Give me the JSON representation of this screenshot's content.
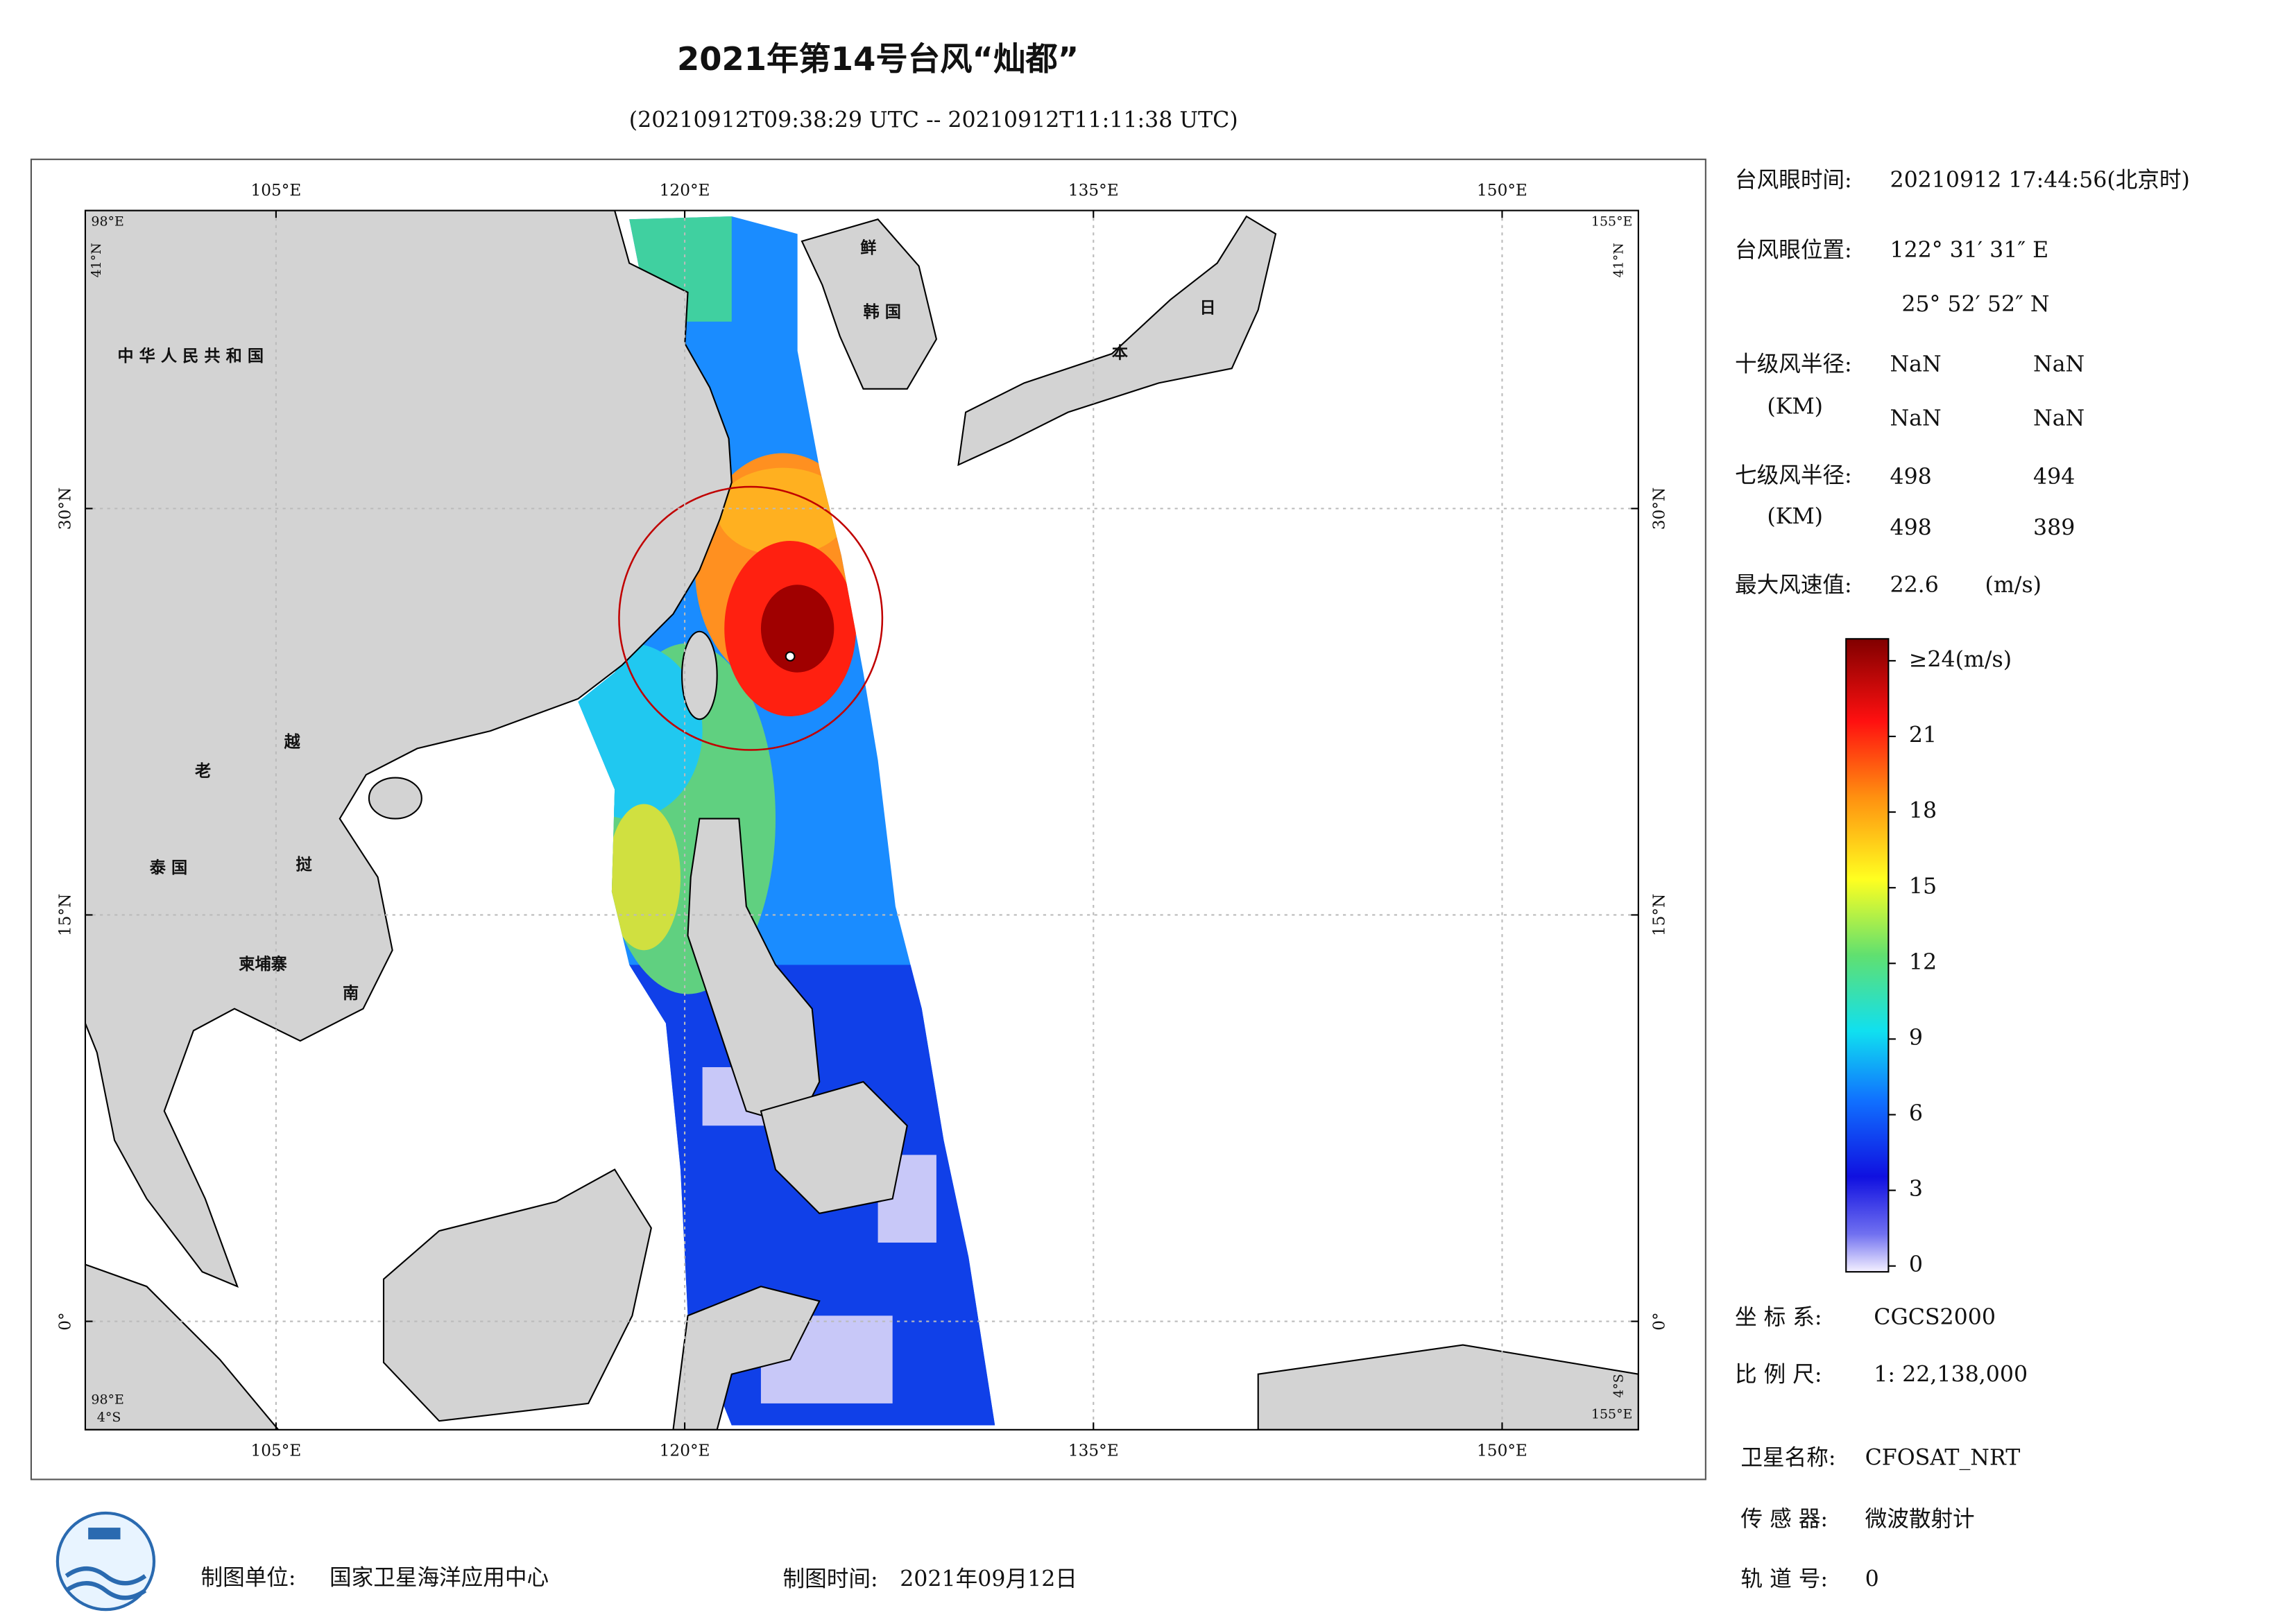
{
  "title": "2021年第14号台风“灿都”",
  "subtitle": "(20210912T09:38:29 UTC -- 20210912T11:11:38 UTC)",
  "map": {
    "lon_range": [
      {
        "value": 98,
        "label": "98°E"
      },
      {
        "value": 155,
        "label": "155°E"
      }
    ],
    "lat_range": [
      {
        "value": -4,
        "label": "4°S"
      },
      {
        "value": 41,
        "label": "41°N"
      }
    ],
    "lon_ticks": [
      {
        "value": 105,
        "label": "105°E"
      },
      {
        "value": 120,
        "label": "120°E"
      },
      {
        "value": 135,
        "label": "135°E"
      },
      {
        "value": 150,
        "label": "150°E"
      }
    ],
    "lat_ticks": [
      {
        "value": 0,
        "label": "0°"
      },
      {
        "value": 15,
        "label": "15°N"
      },
      {
        "value": 30,
        "label": "30°N"
      }
    ],
    "place_labels": [
      "中 华 人 民 共 和 国",
      "鲜",
      "韩 国",
      "日",
      "本",
      "老",
      "越",
      "泰 国",
      "挝",
      "柬埔寨",
      "南"
    ]
  },
  "info": {
    "eye_time_label": "台风眼时间:",
    "eye_time": "20210912 17:44:56(北京时)",
    "eye_pos_label": "台风眼位置:",
    "eye_lon": "122° 31′ 31″ E",
    "eye_lat": "25° 52′ 52″ N",
    "r10_label": "十级风半径:",
    "r10_unit": "(KM)",
    "r10": [
      "NaN",
      "NaN",
      "NaN",
      "NaN"
    ],
    "r7_label": "七级风半径:",
    "r7_unit": "(KM)",
    "r7": [
      498,
      494,
      498,
      389
    ],
    "max_wind_label": "最大风速值:",
    "max_wind": 22.6,
    "max_wind_unit": "(m/s)",
    "crs_label": "坐 标 系:",
    "crs": "CGCS2000",
    "scale_label": "比 例 尺:",
    "scale": "1: 22,138,000",
    "satellite_label": "卫星名称:",
    "satellite": "CFOSAT_NRT",
    "sensor_label": "传 感 器:",
    "sensor": "微波散射计",
    "orbit_label": "轨 道 号:",
    "orbit": 0
  },
  "colorbar": {
    "range": [
      0,
      24
    ],
    "ticks": [
      0,
      3,
      6,
      9,
      12,
      15,
      18,
      21,
      {
        "value": 24,
        "label": "≥24(m/s)"
      }
    ]
  },
  "footer": {
    "unit_label": "制图单位:",
    "unit": "国家卫星海洋应用中心",
    "time_label": "制图时间:",
    "time": "2021年09月12日"
  }
}
